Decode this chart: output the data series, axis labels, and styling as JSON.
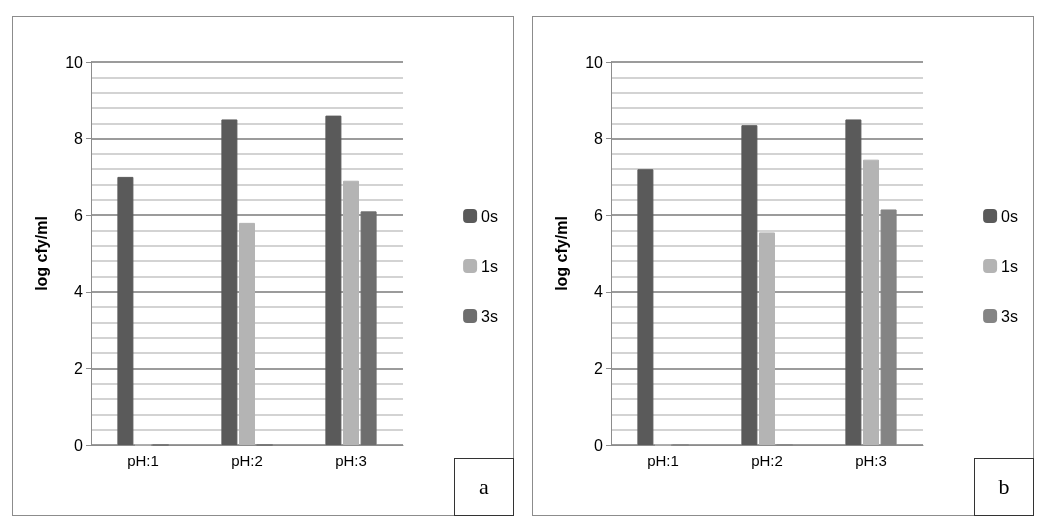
{
  "chart_data": [
    {
      "type": "bar",
      "ylabel": "log cfy/ml",
      "categories": [
        "pH:1",
        "pH:2",
        "pH:3"
      ],
      "series": [
        {
          "name": "0s",
          "color": "#5a5a5a",
          "values": [
            7.0,
            8.5,
            8.6
          ]
        },
        {
          "name": "1s",
          "color": "#b4b4b4",
          "values": [
            0,
            5.8,
            6.9
          ]
        },
        {
          "name": "3s",
          "color": "#6e6e6e",
          "values": [
            0,
            0,
            6.1
          ]
        }
      ],
      "ylim": [
        0,
        10
      ],
      "yticks": [
        0,
        2,
        4,
        6,
        8,
        10
      ],
      "grid": true,
      "legend": "right",
      "annotations": [
        "a"
      ]
    },
    {
      "type": "bar",
      "ylabel": "log cfy/ml",
      "categories": [
        "pH:1",
        "pH:2",
        "pH:3"
      ],
      "series": [
        {
          "name": "0s",
          "color": "#5a5a5a",
          "values": [
            7.2,
            8.35,
            8.5
          ]
        },
        {
          "name": "1s",
          "color": "#b4b4b4",
          "values": [
            0,
            5.55,
            7.45
          ]
        },
        {
          "name": "3s",
          "color": "#848484",
          "values": [
            0,
            0,
            6.15
          ]
        }
      ],
      "ylim": [
        0,
        10
      ],
      "yticks": [
        0,
        2,
        4,
        6,
        8,
        10
      ],
      "grid": true,
      "legend": "right",
      "annotations": [
        "b"
      ]
    }
  ]
}
